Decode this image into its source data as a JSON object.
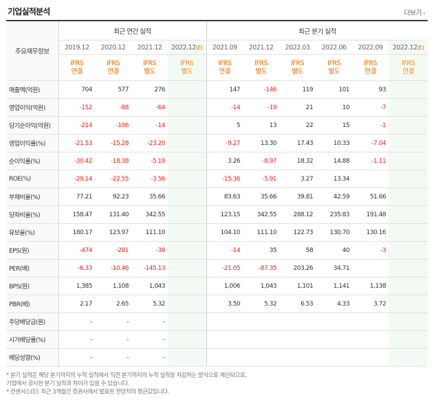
{
  "header": {
    "title": "기업실적분석",
    "more_label": "더보기",
    "more_icon": "chevron-right-icon"
  },
  "table": {
    "row_header": "주요재무정보",
    "group_annual": "최근 연간 실적",
    "group_quarter": "최근 분기 실적",
    "annual_periods": [
      {
        "period": "2019.12",
        "type": "IFRS",
        "basis": "연결"
      },
      {
        "period": "2020.12",
        "type": "IFRS",
        "basis": "연결"
      },
      {
        "period": "2021.12",
        "type": "IFRS",
        "basis": "별도"
      },
      {
        "period": "2022.12",
        "est": "(E)",
        "type": "IFRS",
        "basis": "별도"
      }
    ],
    "quarter_periods": [
      {
        "period": "2021.09",
        "type": "IFRS",
        "basis": "연결"
      },
      {
        "period": "2021.12",
        "type": "IFRS",
        "basis": "별도"
      },
      {
        "period": "2022.03",
        "type": "IFRS",
        "basis": "별도"
      },
      {
        "period": "2022.06",
        "type": "IFRS",
        "basis": "별도"
      },
      {
        "period": "2022.09",
        "type": "IFRS",
        "basis": "연결"
      },
      {
        "period": "2022.12",
        "est": "(E)",
        "type": "IFRS",
        "basis": "연결"
      }
    ],
    "rows": [
      {
        "label": "매출액(억원)",
        "values": [
          "704",
          "577",
          "276",
          "",
          "147",
          "-146",
          "119",
          "101",
          "93",
          ""
        ]
      },
      {
        "label": "영업이익(억원)",
        "values": [
          "-152",
          "-88",
          "-64",
          "",
          "-14",
          "-19",
          "21",
          "10",
          "-7",
          ""
        ]
      },
      {
        "label": "당기순이익(억원)",
        "values": [
          "-214",
          "-106",
          "-14",
          "",
          "5",
          "13",
          "22",
          "15",
          "-1",
          ""
        ]
      },
      {
        "label": "영업이익률(%)",
        "values": [
          "-21.53",
          "-15.28",
          "-23.20",
          "",
          "-9.27",
          "13.30",
          "17.43",
          "10.33",
          "-7.04",
          ""
        ]
      },
      {
        "label": "순이익률(%)",
        "values": [
          "-30.42",
          "-18.38",
          "-5.19",
          "",
          "3.26",
          "-8.97",
          "18.32",
          "14.88",
          "-1.11",
          ""
        ]
      },
      {
        "label": "ROE(%)",
        "values": [
          "-29.14",
          "-22.55",
          "-3.56",
          "",
          "-15.36",
          "-5.91",
          "3.27",
          "13.34",
          "",
          ""
        ]
      },
      {
        "label": "부채비율(%)",
        "values": [
          "77.21",
          "92.23",
          "35.66",
          "",
          "83.63",
          "35.66",
          "39.81",
          "42.59",
          "51.66",
          ""
        ]
      },
      {
        "label": "당좌비율(%)",
        "values": [
          "158.47",
          "131.40",
          "342.55",
          "",
          "123.15",
          "342.55",
          "288.12",
          "235.83",
          "191.48",
          ""
        ]
      },
      {
        "label": "유보율(%)",
        "values": [
          "180.17",
          "123.97",
          "111.10",
          "",
          "104.10",
          "111.10",
          "122.73",
          "130.70",
          "130.16",
          ""
        ]
      },
      {
        "label": "EPS(원)",
        "values": [
          "-474",
          "-281",
          "-38",
          "",
          "-14",
          "35",
          "58",
          "40",
          "-3",
          ""
        ]
      },
      {
        "label": "PER(배)",
        "values": [
          "-6.33",
          "-10.46",
          "-145.13",
          "",
          "-21.05",
          "-87.35",
          "203.26",
          "34.71",
          "",
          ""
        ]
      },
      {
        "label": "BPS(원)",
        "values": [
          "1,385",
          "1,108",
          "1,043",
          "",
          "1,006",
          "1,043",
          "1,101",
          "1,141",
          "1,138",
          ""
        ]
      },
      {
        "label": "PBR(배)",
        "values": [
          "2.17",
          "2.65",
          "5.32",
          "",
          "3.50",
          "5.32",
          "6.53",
          "4.33",
          "3.72",
          ""
        ]
      },
      {
        "label": "주당배당금(원)",
        "values": [
          "-",
          "-",
          "-",
          "",
          "",
          "",
          "",
          "",
          "",
          ""
        ]
      },
      {
        "label": "시가배당률(%)",
        "values": [
          "-",
          "-",
          "-",
          "",
          "",
          "",
          "",
          "",
          "",
          ""
        ]
      },
      {
        "label": "배당성향(%)",
        "values": [
          "-",
          "-",
          "-",
          "",
          "",
          "",
          "",
          "",
          "",
          ""
        ]
      }
    ]
  },
  "notes": {
    "line1": "* 분기 실적은 해당 분기까지의 누적 실적에서 직전 분기까지의 누적 실적을 차감하는 방식으로 계산되므로,",
    "line2": "  기업에서 공시한 분기 실적과 차이가 있을 수 있습니다.",
    "line3_prefix": "* 컨센서스(",
    "line3_mark": "E",
    "line3_suffix": "): 최근 3개월간 증권사에서 발표한 전망치의 평균값입니다."
  },
  "colors": {
    "negative": "#e8201c",
    "ifrs_label": "#e06c00",
    "estimate_bg": "#f3faf3"
  }
}
